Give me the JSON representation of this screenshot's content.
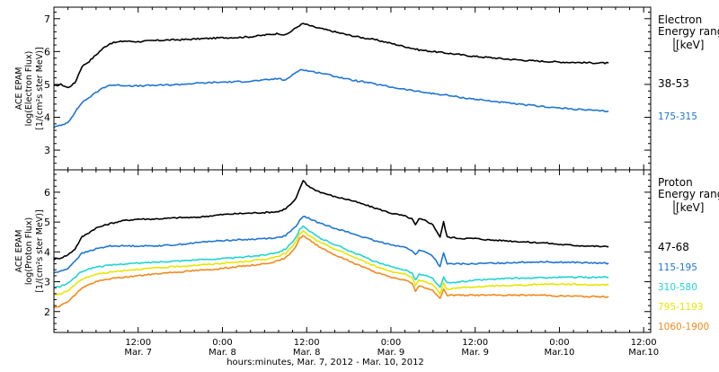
{
  "chart_data": {
    "type": "line",
    "xlabel": "hours:minutes, Mar.  7, 2012 - Mar. 10, 2012",
    "x_range_hours": [
      0,
      85
    ],
    "x_ticks": [
      {
        "hour": 12,
        "time": "12:00",
        "day": "Mar. 7"
      },
      {
        "hour": 24,
        "time": "0:00",
        "day": "Mar. 8"
      },
      {
        "hour": 36,
        "time": "12:00",
        "day": "Mar. 8"
      },
      {
        "hour": 48,
        "time": "0:00",
        "day": "Mar. 9"
      },
      {
        "hour": 60,
        "time": "12:00",
        "day": "Mar. 9"
      },
      {
        "hour": 72,
        "time": "0:00",
        "day": "Mar.10"
      },
      {
        "hour": 84,
        "time": "12:00",
        "day": "Mar.10"
      }
    ],
    "panels": [
      {
        "ylabel_lines": [
          "ACE EPAM",
          "log(Electron Flux)",
          "[1/(cm²s ster MeV)]"
        ],
        "ylim": [
          2.4,
          7.35
        ],
        "y_ticks": [
          3,
          4,
          5,
          6,
          7
        ],
        "legend_title_lines": [
          "Electron",
          "Energy ranges",
          "[keV]"
        ],
        "series": [
          {
            "name": "38-53",
            "color": "#000000",
            "x": [
              0,
              1,
              2,
              3,
              4,
              5,
              6,
              7,
              8,
              10,
              12,
              14,
              16,
              18,
              20,
              22,
              24,
              26,
              28,
              30,
              32,
              33,
              34,
              35,
              35.5,
              36,
              37,
              38,
              40,
              42,
              44,
              46,
              48,
              50,
              52,
              54,
              56,
              58,
              60,
              62,
              64,
              66,
              68,
              70,
              72,
              74,
              76,
              78,
              79
            ],
            "y": [
              4.95,
              5.0,
              4.9,
              5.05,
              5.55,
              5.7,
              5.9,
              6.1,
              6.25,
              6.32,
              6.3,
              6.33,
              6.35,
              6.36,
              6.38,
              6.4,
              6.42,
              6.43,
              6.45,
              6.5,
              6.55,
              6.5,
              6.65,
              6.8,
              6.85,
              6.82,
              6.75,
              6.7,
              6.6,
              6.5,
              6.42,
              6.35,
              6.25,
              6.15,
              6.05,
              6.0,
              5.95,
              5.9,
              5.85,
              5.82,
              5.78,
              5.75,
              5.72,
              5.7,
              5.68,
              5.67,
              5.66,
              5.65,
              5.65
            ]
          },
          {
            "name": "175-315",
            "color": "#1f76d2",
            "x": [
              0,
              1,
              2,
              3,
              4,
              5,
              6,
              7,
              8,
              10,
              12,
              14,
              16,
              18,
              20,
              22,
              24,
              26,
              28,
              30,
              32,
              33,
              34,
              35,
              36,
              37,
              38,
              40,
              42,
              44,
              46,
              48,
              50,
              52,
              54,
              56,
              58,
              60,
              62,
              64,
              66,
              68,
              70,
              72,
              74,
              76,
              78,
              79
            ],
            "y": [
              3.7,
              3.75,
              3.85,
              4.15,
              4.45,
              4.6,
              4.75,
              4.9,
              4.98,
              4.97,
              4.95,
              4.97,
              4.98,
              5.0,
              5.03,
              5.05,
              5.07,
              5.08,
              5.1,
              5.13,
              5.18,
              5.12,
              5.3,
              5.45,
              5.42,
              5.38,
              5.35,
              5.25,
              5.15,
              5.08,
              5.0,
              4.92,
              4.85,
              4.78,
              4.72,
              4.67,
              4.6,
              4.55,
              4.5,
              4.45,
              4.4,
              4.36,
              4.32,
              4.28,
              4.25,
              4.22,
              4.19,
              4.18
            ]
          }
        ]
      },
      {
        "ylabel_lines": [
          "ACE EPAM",
          "log(Proton Flux)",
          "[1/(cm²s ster MeV)]"
        ],
        "ylim": [
          1.3,
          6.75
        ],
        "y_ticks": [
          2,
          3,
          4,
          5,
          6
        ],
        "legend_title_lines": [
          "Proton",
          "Energy ranges",
          "[keV]"
        ],
        "series": [
          {
            "name": "47-68",
            "color": "#000000",
            "x": [
              0,
              1,
              2,
              3,
              4,
              6,
              8,
              10,
              12,
              14,
              16,
              18,
              20,
              22,
              24,
              26,
              28,
              30,
              32,
              33,
              34,
              34.5,
              35,
              35.5,
              36,
              37,
              38,
              40,
              42,
              44,
              46,
              48,
              50,
              51,
              51.5,
              52,
              53,
              54,
              55,
              55.5,
              56,
              58,
              60,
              62,
              64,
              66,
              68,
              70,
              72,
              74,
              76,
              78,
              79
            ],
            "y": [
              3.75,
              3.8,
              3.9,
              4.1,
              4.5,
              4.8,
              4.95,
              5.05,
              5.1,
              5.1,
              5.12,
              5.15,
              5.15,
              5.2,
              5.25,
              5.28,
              5.3,
              5.32,
              5.35,
              5.45,
              5.65,
              5.8,
              6.1,
              6.4,
              6.25,
              6.1,
              6.0,
              5.85,
              5.75,
              5.6,
              5.45,
              5.3,
              5.2,
              5.1,
              4.9,
              5.1,
              5.05,
              4.9,
              4.5,
              5.0,
              4.5,
              4.45,
              4.45,
              4.4,
              4.38,
              4.35,
              4.32,
              4.3,
              4.25,
              4.22,
              4.2,
              4.18,
              4.17
            ]
          },
          {
            "name": "115-195",
            "color": "#1f76d2",
            "x": [
              0,
              1,
              2,
              3,
              4,
              6,
              8,
              10,
              12,
              14,
              16,
              18,
              20,
              22,
              24,
              26,
              28,
              30,
              32,
              33,
              34,
              34.5,
              35,
              35.5,
              36,
              37,
              38,
              40,
              42,
              44,
              46,
              48,
              50,
              51,
              51.5,
              52,
              53,
              54,
              55,
              55.5,
              56,
              58,
              60,
              62,
              64,
              66,
              68,
              70,
              72,
              74,
              76,
              78,
              79
            ],
            "y": [
              3.3,
              3.35,
              3.45,
              3.7,
              3.95,
              4.1,
              4.2,
              4.2,
              4.2,
              4.2,
              4.22,
              4.25,
              4.3,
              4.35,
              4.38,
              4.4,
              4.42,
              4.45,
              4.48,
              4.55,
              4.75,
              4.85,
              5.05,
              5.2,
              5.15,
              5.05,
              4.95,
              4.8,
              4.65,
              4.5,
              4.35,
              4.25,
              4.15,
              4.05,
              3.9,
              4.05,
              4.0,
              3.85,
              3.5,
              3.95,
              3.6,
              3.6,
              3.6,
              3.62,
              3.63,
              3.65,
              3.66,
              3.67,
              3.65,
              3.65,
              3.63,
              3.62,
              3.62
            ]
          },
          {
            "name": "310-580",
            "color": "#22d3d3",
            "x": [
              0,
              1,
              2,
              3,
              4,
              6,
              8,
              10,
              12,
              14,
              16,
              18,
              20,
              22,
              24,
              26,
              28,
              30,
              32,
              33,
              34,
              34.5,
              35,
              35.5,
              36,
              37,
              38,
              40,
              42,
              44,
              46,
              48,
              50,
              51,
              51.5,
              52,
              53,
              54,
              55,
              55.5,
              56,
              58,
              60,
              62,
              64,
              66,
              68,
              70,
              72,
              74,
              76,
              78,
              79
            ],
            "y": [
              2.8,
              2.85,
              2.95,
              3.15,
              3.35,
              3.5,
              3.55,
              3.6,
              3.62,
              3.65,
              3.68,
              3.7,
              3.73,
              3.75,
              3.78,
              3.8,
              3.85,
              3.9,
              4.0,
              4.1,
              4.35,
              4.5,
              4.75,
              4.85,
              4.75,
              4.6,
              4.45,
              4.25,
              4.05,
              3.85,
              3.65,
              3.5,
              3.4,
              3.3,
              3.05,
              3.25,
              3.2,
              3.1,
              2.8,
              3.15,
              2.95,
              3.0,
              3.05,
              3.08,
              3.1,
              3.12,
              3.12,
              3.14,
              3.15,
              3.15,
              3.15,
              3.15,
              3.15
            ]
          },
          {
            "name": "795-1193",
            "color": "#e6e600",
            "x": [
              0,
              1,
              2,
              3,
              4,
              6,
              8,
              10,
              12,
              14,
              16,
              18,
              20,
              22,
              24,
              26,
              28,
              30,
              32,
              33,
              34,
              34.5,
              35,
              35.5,
              36,
              37,
              38,
              40,
              42,
              44,
              46,
              48,
              50,
              51,
              51.5,
              52,
              53,
              54,
              55,
              55.5,
              56,
              58,
              60,
              62,
              64,
              66,
              68,
              70,
              72,
              74,
              76,
              78,
              79
            ],
            "y": [
              2.55,
              2.6,
              2.7,
              2.9,
              3.1,
              3.25,
              3.32,
              3.38,
              3.42,
              3.45,
              3.48,
              3.52,
              3.55,
              3.58,
              3.62,
              3.65,
              3.7,
              3.75,
              3.85,
              3.95,
              4.2,
              4.35,
              4.6,
              4.7,
              4.6,
              4.45,
              4.3,
              4.1,
              3.9,
              3.7,
              3.5,
              3.35,
              3.25,
              3.12,
              2.85,
              3.05,
              3.0,
              2.9,
              2.6,
              2.95,
              2.75,
              2.8,
              2.82,
              2.85,
              2.87,
              2.88,
              2.9,
              2.92,
              2.92,
              2.92,
              2.9,
              2.9,
              2.9
            ]
          },
          {
            "name": "1060-1900",
            "color": "#f08a1c",
            "x": [
              0,
              1,
              2,
              3,
              4,
              6,
              8,
              10,
              12,
              14,
              16,
              18,
              20,
              22,
              24,
              26,
              28,
              30,
              32,
              33,
              34,
              34.5,
              35,
              35.5,
              36,
              37,
              38,
              40,
              42,
              44,
              46,
              48,
              50,
              51,
              51.5,
              52,
              53,
              54,
              55,
              55.5,
              56,
              58,
              60,
              62,
              64,
              66,
              68,
              70,
              72,
              74,
              76,
              78,
              79
            ],
            "y": [
              2.15,
              2.2,
              2.35,
              2.55,
              2.8,
              3.0,
              3.1,
              3.15,
              3.2,
              3.25,
              3.3,
              3.33,
              3.37,
              3.4,
              3.45,
              3.5,
              3.55,
              3.6,
              3.7,
              3.8,
              4.05,
              4.2,
              4.45,
              4.55,
              4.45,
              4.3,
              4.15,
              3.9,
              3.7,
              3.5,
              3.3,
              3.15,
              3.05,
              2.95,
              2.7,
              2.85,
              2.8,
              2.7,
              2.45,
              2.75,
              2.55,
              2.55,
              2.55,
              2.55,
              2.55,
              2.55,
              2.55,
              2.55,
              2.52,
              2.52,
              2.5,
              2.5,
              2.5
            ]
          }
        ]
      }
    ]
  }
}
